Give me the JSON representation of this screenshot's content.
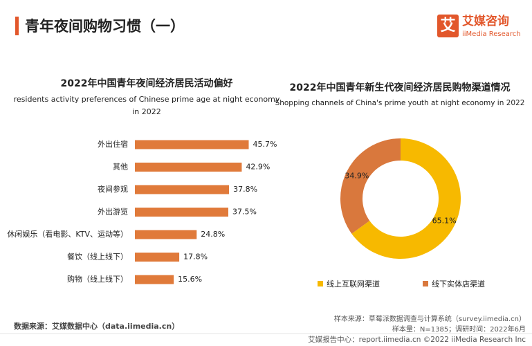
{
  "header": {
    "title": "青年夜间购物习惯（一）",
    "logo_icon": "艾",
    "logo_name": "艾媒咨询",
    "logo_en": "iiMedia Research"
  },
  "chart_data": [
    {
      "type": "hbar",
      "title": "2022年中国青年夜间经济居民活动偏好",
      "subtitle": [
        "residents activity preferences of Chinese prime age at night economy",
        "in 2022"
      ],
      "categories": [
        "外出住宿",
        "其他",
        "夜间参观",
        "外出游览",
        "休闲娱乐（看电影、KTV、运动等）",
        "餐饮（线上线下）",
        "购物（线上线下）"
      ],
      "values": [
        45.7,
        42.9,
        37.8,
        37.5,
        24.8,
        17.8,
        15.6
      ],
      "value_labels": [
        "45.7%",
        "42.9%",
        "37.8%",
        "37.5%",
        "24.8%",
        "17.8%",
        "15.6%"
      ],
      "color": "#e07a3a"
    },
    {
      "type": "donut",
      "title": "2022年中国青年新生代夜间经济居民购物渠道情况",
      "subtitle": "Shopping channels of China's prime youth at night  economy in 2022",
      "categories": [
        "线上互联网渠道",
        "线下实体店渠道"
      ],
      "values": [
        65.1,
        34.9
      ],
      "value_labels": [
        "65.1%",
        "34.9%"
      ],
      "colors": [
        "#f7b900",
        "#d9783d"
      ]
    }
  ],
  "footer": {
    "source": "数据来源：艾媒数据中心（data.iimedia.cn）",
    "sample_source": "样本来源：草莓派数据调查与计算系统（survey.iimedia.cn）",
    "sample_size": "样本量：N=1385；调研时间：2022年6月",
    "report": "艾媒报告中心：report.iimedia.cn  ©2022  iiMedia Research  Inc"
  }
}
